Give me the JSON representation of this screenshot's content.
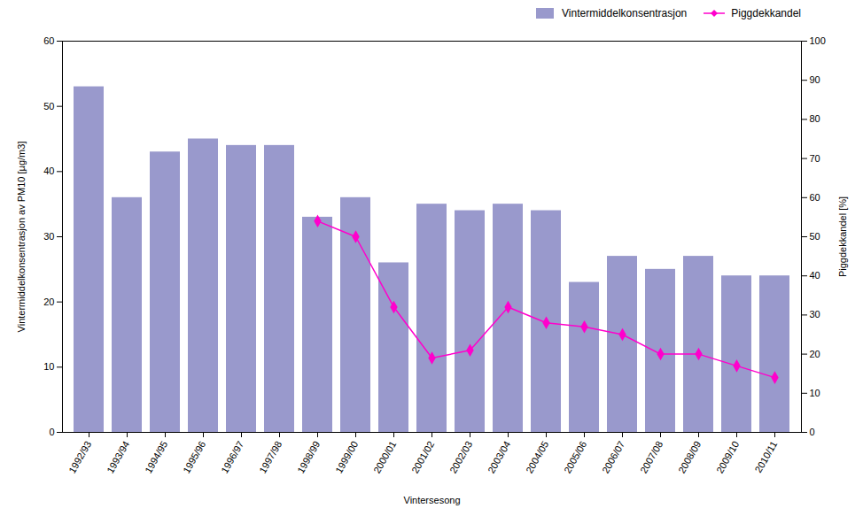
{
  "chart_data": {
    "type": "bar",
    "categories": [
      "1992/93",
      "1993/94",
      "1994/95",
      "1995/96",
      "1996/97",
      "1997/98",
      "1998/99",
      "1999/00",
      "2000/01",
      "2001/02",
      "2002/03",
      "2003/04",
      "2004/05",
      "2005/06",
      "2006/07",
      "2007/08",
      "2008/09",
      "2009/10",
      "2010/11"
    ],
    "series": [
      {
        "name": "Vintermiddelkonsentrasjon",
        "type": "bar",
        "color": "#9999CC",
        "values": [
          53,
          36,
          43,
          45,
          44,
          44,
          33,
          36,
          26,
          35,
          34,
          35,
          34,
          23,
          27,
          25,
          27,
          24,
          24
        ]
      },
      {
        "name": "Piggdekkandel",
        "type": "line",
        "axis": "y2",
        "color": "#FF00CC",
        "marker": "diamond",
        "values": [
          null,
          null,
          null,
          null,
          null,
          null,
          54,
          50,
          32,
          19,
          21,
          32,
          28,
          27,
          25,
          20,
          20,
          17,
          14
        ]
      }
    ],
    "xlabel": "Vintersesong",
    "ylabel": "Vintermiddelkonsentrasjon av PM10 [µg/m3]",
    "y2label": "Piggdekkandel [%]",
    "ylim": [
      0,
      60
    ],
    "yticks": [
      0,
      10,
      20,
      30,
      40,
      50,
      60
    ],
    "y2lim": [
      0,
      100
    ],
    "y2ticks": [
      0,
      10,
      20,
      30,
      40,
      50,
      60,
      70,
      80,
      90,
      100
    ],
    "legend": "upper right",
    "grid": false
  }
}
